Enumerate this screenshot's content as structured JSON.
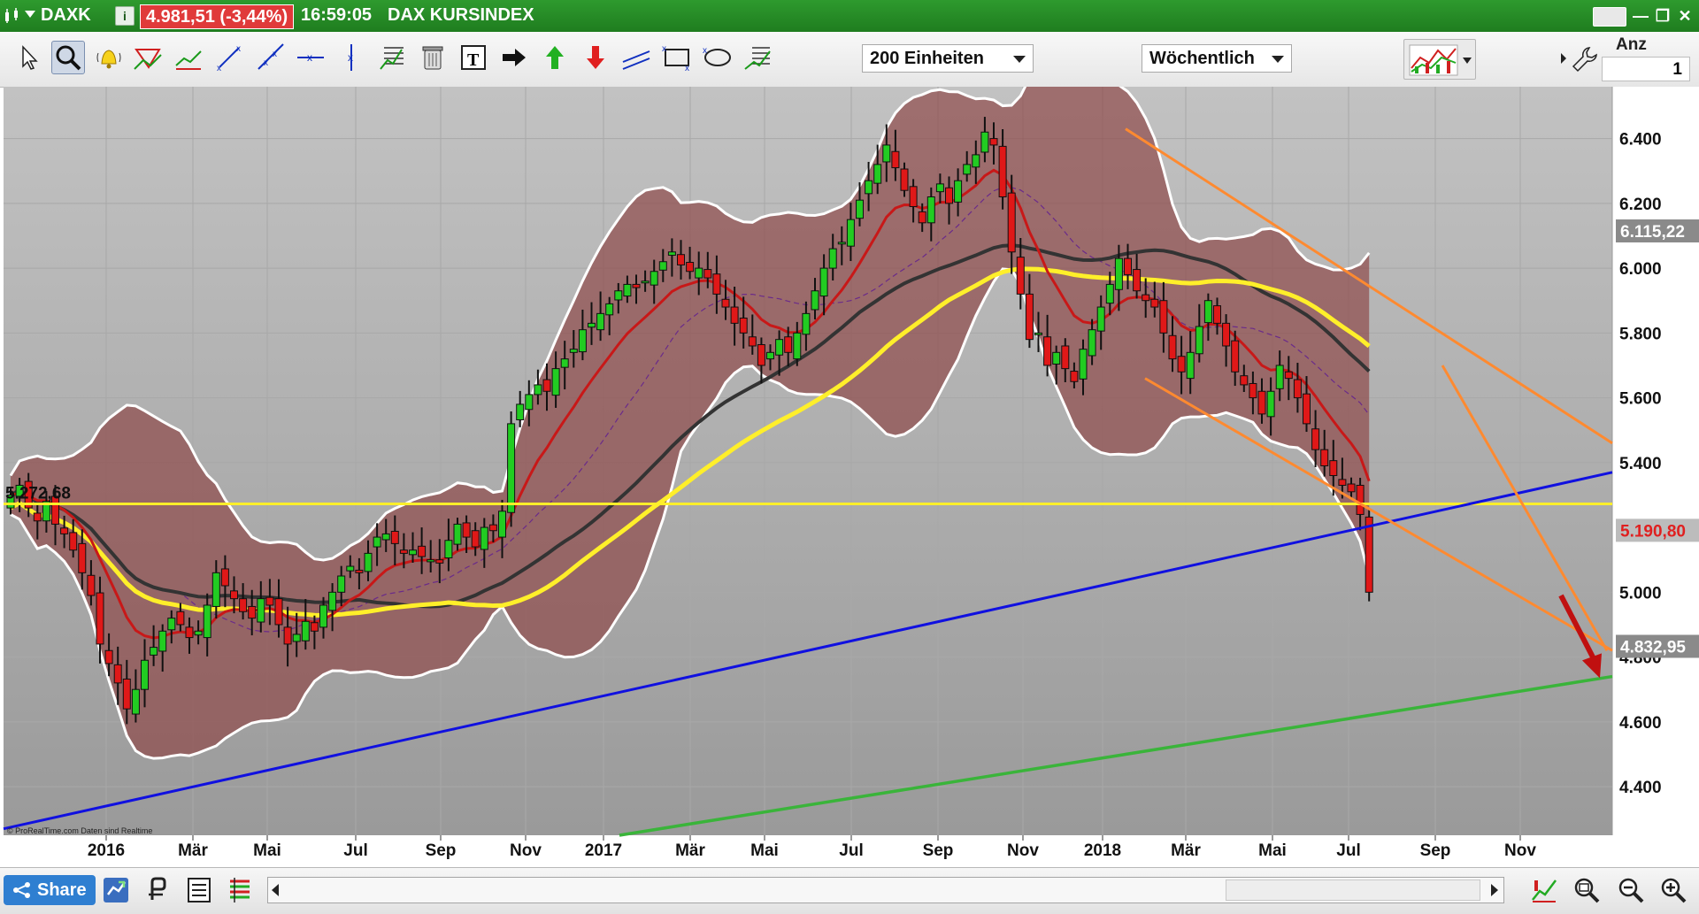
{
  "titlebar": {
    "symbol": "DAXK",
    "info_icon": "i",
    "price": "4.981,51 (-3,44%)",
    "time": "16:59:05",
    "name": "DAX KURSINDEX"
  },
  "toolbar": {
    "units_dropdown": "200 Einheiten",
    "period_dropdown": "Wöchentlich",
    "anz_label": "Anz",
    "anz_value": "1",
    "tools": [
      "pointer-icon",
      "zoom-icon",
      "alert-bell-icon",
      "triangle-draw-icon",
      "trend-draw-icon",
      "line-draw-icon",
      "ray-draw-icon",
      "horizontal-line-icon",
      "vertical-line-icon",
      "fibonacci-icon",
      "trash-icon",
      "text-icon",
      "arrow-right-icon",
      "arrow-up-icon",
      "arrow-down-icon",
      "channel-icon",
      "rectangle-icon",
      "ellipse-icon",
      "fan-icon"
    ]
  },
  "chart_data": {
    "type": "candlestick",
    "instrument": "DAX KURSINDEX",
    "timeframe": "Wöchentlich",
    "y_ticks": [
      "6.400",
      "6.200",
      "6.000",
      "5.800",
      "5.600",
      "5.400",
      "5.000",
      "4.800",
      "4.600",
      "4.400"
    ],
    "y_tick_values": [
      6400,
      6200,
      6000,
      5800,
      5600,
      5400,
      5000,
      4800,
      4600,
      4400
    ],
    "ylim": [
      4250,
      6560
    ],
    "x_labels": [
      "2016",
      "Mär",
      "Mai",
      "Jul",
      "Sep",
      "Nov",
      "2017",
      "Mär",
      "Mai",
      "Jul",
      "Sep",
      "Nov",
      "2018",
      "Mär",
      "Mai",
      "Jul",
      "Sep",
      "Nov"
    ],
    "x_label_bold": [
      "2016",
      "2017",
      "2018"
    ],
    "price_labels": [
      {
        "text": "6.115,22",
        "value": 6115,
        "color": "#ffffff",
        "bg": "#8a8a8a"
      },
      {
        "text": "5.190,80",
        "value": 5191,
        "color": "#e02020",
        "bg": "#bcbcbc"
      },
      {
        "text": "4.832,95",
        "value": 4833,
        "color": "#ffffff",
        "bg": "#8a8a8a"
      }
    ],
    "horizontal_level_label": "5.272,68",
    "horizontal_level_value": 5272.68,
    "watermark": "© ProRealTime.com Daten sind Realtime",
    "colors": {
      "up": "#22cc22",
      "down": "#e01818",
      "band_fill": "#8e4a4a",
      "band_line": "#ffffff",
      "sma_yellow": "#ffef2a",
      "sma_black": "#333333",
      "ema_red": "#c81818",
      "ema_green": "#1a8a1a",
      "trend_blue": "#1010e0",
      "trend_green": "#3ab43a",
      "channel_orange": "#ff8a30",
      "arrow_red": "#c01010"
    },
    "closes": [
      5300,
      5330,
      5260,
      5220,
      5280,
      5210,
      5180,
      5130,
      5060,
      4990,
      4840,
      4780,
      4720,
      4640,
      4700,
      4790,
      4830,
      4880,
      4920,
      4900,
      4860,
      4880,
      4960,
      5060,
      5020,
      4980,
      4940,
      4920,
      4980,
      4960,
      4900,
      4840,
      4870,
      4910,
      4880,
      4960,
      5000,
      5050,
      5080,
      5060,
      5120,
      5170,
      5180,
      5150,
      5120,
      5130,
      5110,
      5100,
      5090,
      5160,
      5210,
      5170,
      5140,
      5200,
      5190,
      5250,
      5520,
      5580,
      5610,
      5640,
      5620,
      5690,
      5720,
      5750,
      5810,
      5830,
      5860,
      5890,
      5930,
      5950,
      5940,
      5960,
      5990,
      6020,
      6050,
      6010,
      5990,
      6000,
      5970,
      5920,
      5880,
      5830,
      5800,
      5760,
      5700,
      5740,
      5780,
      5740,
      5800,
      5860,
      5930,
      6000,
      6060,
      6080,
      6150,
      6210,
      6270,
      6320,
      6380,
      6310,
      6240,
      6190,
      6140,
      6220,
      6260,
      6200,
      6270,
      6320,
      6350,
      6420,
      6380,
      6220,
      6050,
      5920,
      5780,
      5800,
      5700,
      5740,
      5690,
      5650,
      5750,
      5810,
      5880,
      5950,
      6030,
      5980,
      5930,
      5900,
      5880,
      5800,
      5720,
      5680,
      5740,
      5820,
      5900,
      5830,
      5760,
      5680,
      5640,
      5600,
      5550,
      5620,
      5700,
      5660,
      5600,
      5520,
      5440,
      5390,
      5360,
      5330,
      5310,
      5240,
      5000
    ]
  },
  "bottombar": {
    "share_label": "Share",
    "icons": [
      "chart-type-icon",
      "indicator-icon",
      "list-icon",
      "layers-icon",
      "zoom-fit-icon",
      "zoom-out-icon",
      "zoom-in-icon"
    ]
  }
}
